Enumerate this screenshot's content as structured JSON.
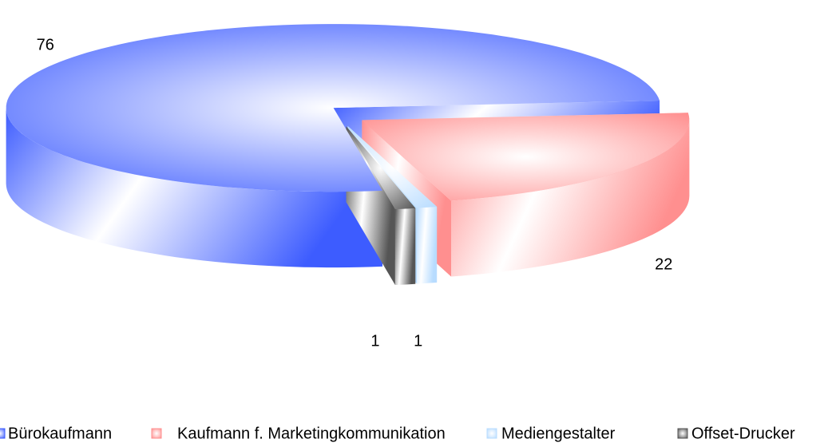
{
  "chart_data": {
    "type": "pie3d",
    "categories": [
      "Bürokaufmann",
      "Kaufmann f. Marketingkommunikation",
      "Mediengestalter",
      "Offset-Drucker"
    ],
    "values": [
      76,
      22,
      1,
      1
    ],
    "colors": [
      "#3d5cff",
      "#ff8f8f",
      "#b8dcff",
      "#555555"
    ],
    "legend": "bottom"
  }
}
